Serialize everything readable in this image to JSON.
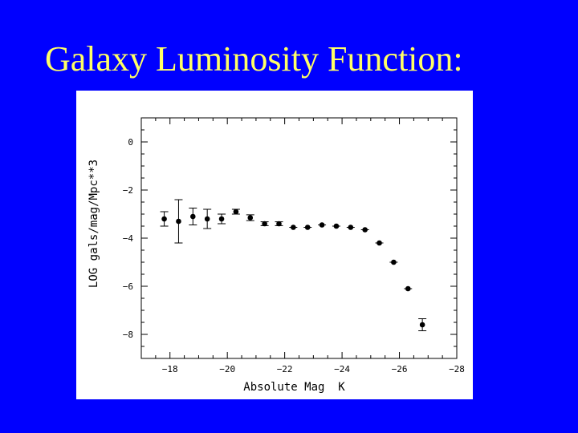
{
  "slide": {
    "title": "Galaxy Luminosity Function:",
    "title_color": "#ffff66",
    "background_color": "#0000ff"
  },
  "chart_data": {
    "type": "scatter",
    "xlabel": "Absolute Mag  K",
    "ylabel": "LOG gals/mag/Mpc**3",
    "xlim": [
      -17,
      -28
    ],
    "ylim": [
      -9,
      1
    ],
    "xticks": [
      -18,
      -20,
      -22,
      -24,
      -26,
      -28
    ],
    "xtick_labels": [
      "−18",
      "−20",
      "−22",
      "−24",
      "−26",
      "−28"
    ],
    "yticks": [
      0,
      -2,
      -4,
      -6,
      -8
    ],
    "ytick_labels": [
      "0",
      "−2",
      "−4",
      "−6",
      "−8"
    ],
    "grid": false,
    "marker_color": "#000000",
    "points": [
      {
        "x": -17.8,
        "y": -3.2,
        "err": 0.3
      },
      {
        "x": -18.3,
        "y": -3.3,
        "err": 0.9
      },
      {
        "x": -18.8,
        "y": -3.1,
        "err": 0.35
      },
      {
        "x": -19.3,
        "y": -3.2,
        "err": 0.4
      },
      {
        "x": -19.8,
        "y": -3.2,
        "err": 0.2
      },
      {
        "x": -20.3,
        "y": -2.9,
        "err": 0.1
      },
      {
        "x": -20.8,
        "y": -3.15,
        "err": 0.12
      },
      {
        "x": -21.3,
        "y": -3.4,
        "err": 0.08
      },
      {
        "x": -21.8,
        "y": -3.4,
        "err": 0.08
      },
      {
        "x": -22.3,
        "y": -3.55,
        "err": 0.06
      },
      {
        "x": -22.8,
        "y": -3.55,
        "err": 0.06
      },
      {
        "x": -23.3,
        "y": -3.45,
        "err": 0.06
      },
      {
        "x": -23.8,
        "y": -3.5,
        "err": 0.06
      },
      {
        "x": -24.3,
        "y": -3.55,
        "err": 0.06
      },
      {
        "x": -24.8,
        "y": -3.65,
        "err": 0.06
      },
      {
        "x": -25.3,
        "y": -4.2,
        "err": 0.06
      },
      {
        "x": -25.8,
        "y": -5.0,
        "err": 0.06
      },
      {
        "x": -26.3,
        "y": -6.1,
        "err": 0.06
      },
      {
        "x": -26.8,
        "y": -7.6,
        "err": 0.25
      }
    ]
  }
}
